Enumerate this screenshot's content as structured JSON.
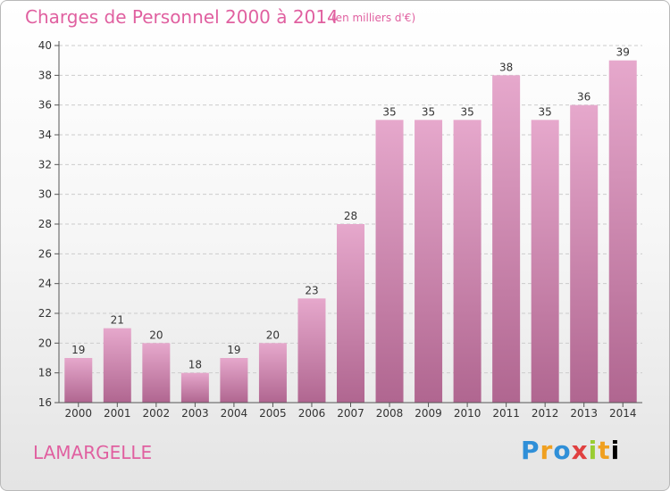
{
  "header": {
    "title": "Charges de Personnel 2000 à 2014",
    "unit_note": "(en milliers d'€)"
  },
  "footer": {
    "commune": "LAMARGELLE",
    "brand": "Proxiti"
  },
  "colors": {
    "title": "#e060a0",
    "bar_top": "#e6a8cc",
    "bar_bottom": "#b06690",
    "grid": "#cccccc"
  },
  "chart_data": {
    "type": "bar",
    "title": "Charges de Personnel 2000 à 2014",
    "subtitle": "(en milliers d'€)",
    "categories": [
      "2000",
      "2001",
      "2002",
      "2003",
      "2004",
      "2005",
      "2006",
      "2007",
      "2008",
      "2009",
      "2010",
      "2011",
      "2012",
      "2013",
      "2014"
    ],
    "values": [
      19,
      21,
      20,
      18,
      19,
      20,
      23,
      28,
      35,
      35,
      35,
      38,
      35,
      36,
      39
    ],
    "ylim": [
      16,
      40
    ],
    "yticks": [
      16,
      18,
      20,
      22,
      24,
      26,
      28,
      30,
      32,
      34,
      36,
      38,
      40
    ],
    "grid": true,
    "data_labels": true
  }
}
